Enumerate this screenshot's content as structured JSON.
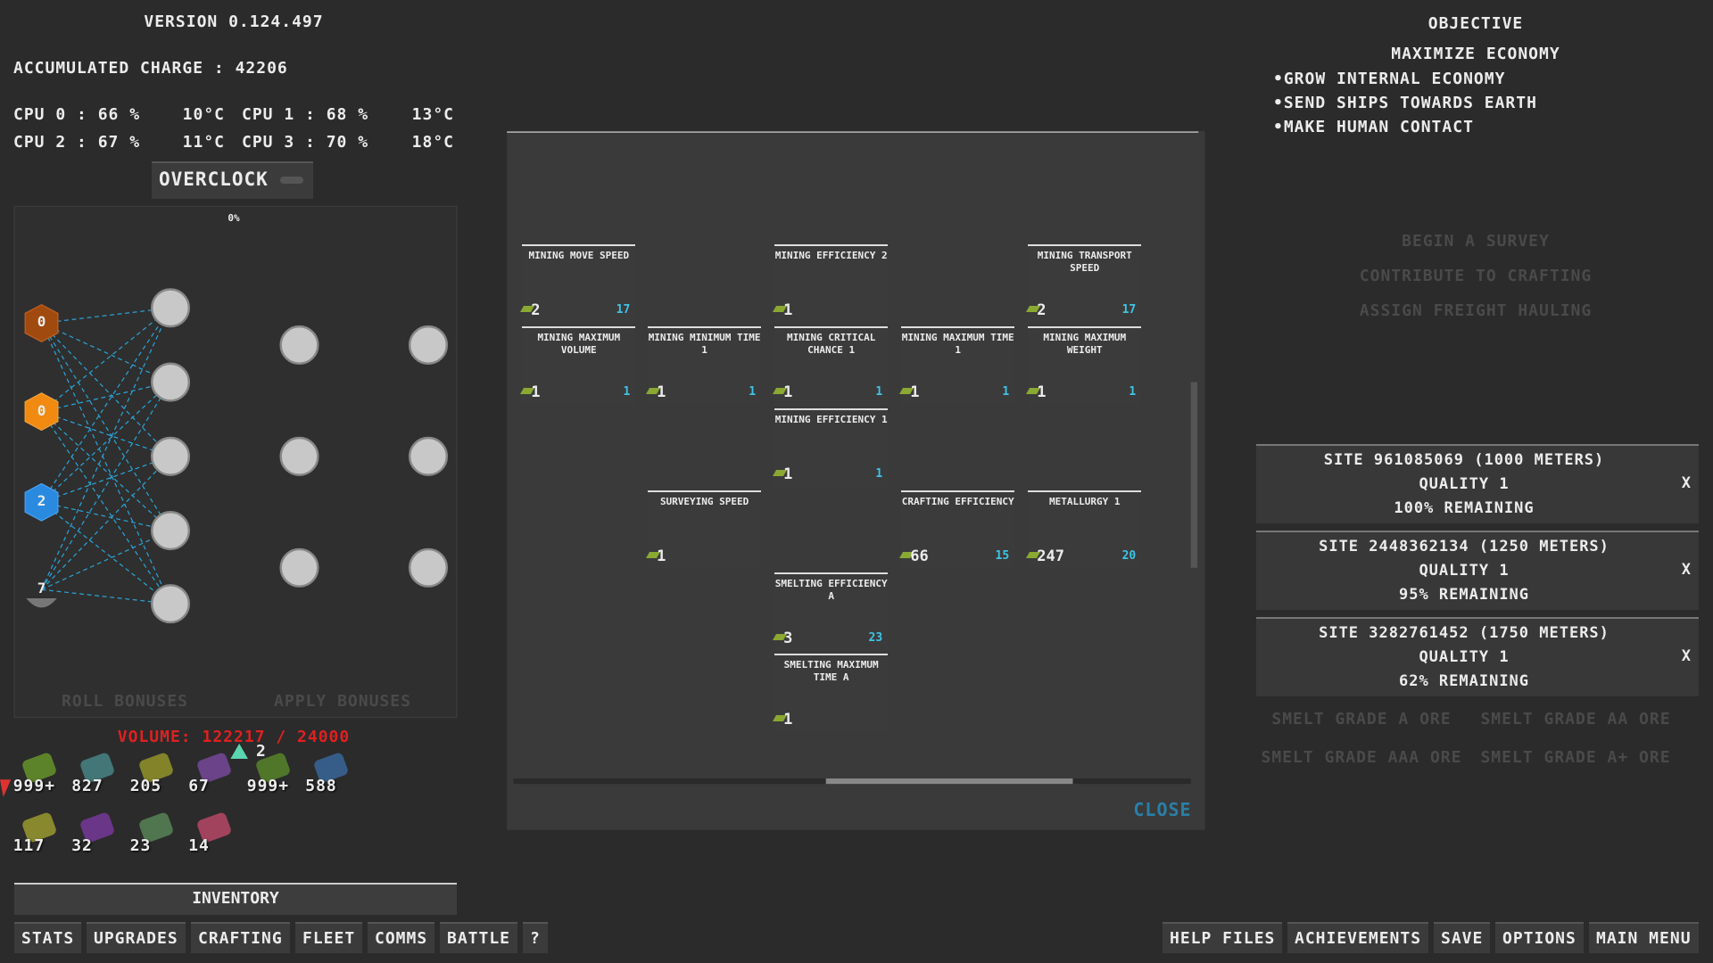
{
  "header": {
    "version": "VERSION 0.124.497",
    "charge": "ACCUMULATED CHARGE : 42206",
    "cpus": [
      {
        "label": "CPU 0 : 66 %",
        "temp": "10°C"
      },
      {
        "label": "CPU 1 : 68 %",
        "temp": "13°C"
      },
      {
        "label": "CPU 2 : 67 %",
        "temp": "11°C"
      },
      {
        "label": "CPU 3 : 70 %",
        "temp": "18°C"
      }
    ],
    "overclock": "OVERCLOCK"
  },
  "neural": {
    "percent": "0%",
    "inputs": [
      "0",
      "0",
      "2",
      "7"
    ],
    "roll": "ROLL BONUSES",
    "apply": "APPLY BONUSES"
  },
  "inventory": {
    "volume": "VOLUME: 122217 / 24000",
    "pending": "2",
    "items": [
      {
        "count": "999+",
        "color": "#6a9a2a"
      },
      {
        "count": "827",
        "color": "#4a8a8a"
      },
      {
        "count": "205",
        "color": "#9a9a2a"
      },
      {
        "count": "67",
        "color": "#7a4aa0"
      },
      {
        "count": "999+",
        "color": "#5a8a2a"
      },
      {
        "count": "588",
        "color": "#3a6aa0"
      },
      {
        "count": "117",
        "color": "#a0a030"
      },
      {
        "count": "32",
        "color": "#7a3aa0"
      },
      {
        "count": "23",
        "color": "#5a8a5a"
      },
      {
        "count": "14",
        "color": "#c04a6a"
      }
    ],
    "title": "INVENTORY"
  },
  "nav_left": [
    "STATS",
    "UPGRADES",
    "CRAFTING",
    "FLEET",
    "COMMS",
    "BATTLE",
    "?"
  ],
  "nav_right": [
    "HELP FILES",
    "ACHIEVEMENTS",
    "SAVE",
    "OPTIONS",
    "MAIN MENU"
  ],
  "objective": {
    "title": "OBJECTIVE",
    "goal": "MAXIMIZE ECONOMY",
    "items": [
      "•GROW INTERNAL ECONOMY",
      "•SEND SHIPS TOWARDS EARTH",
      "•MAKE HUMAN CONTACT"
    ]
  },
  "actions": [
    "BEGIN A SURVEY",
    "CONTRIBUTE TO CRAFTING",
    "ASSIGN FREIGHT HAULING"
  ],
  "sites": [
    {
      "name": "SITE 961085069 (1000 METERS)",
      "quality": "QUALITY 1",
      "remaining": "100% REMAINING"
    },
    {
      "name": "SITE 2448362134 (1250 METERS)",
      "quality": "QUALITY 1",
      "remaining": "95% REMAINING"
    },
    {
      "name": "SITE 3282761452 (1750 METERS)",
      "quality": "QUALITY 1",
      "remaining": "62% REMAINING"
    }
  ],
  "site_close": "X",
  "smelt": [
    "SMELT GRADE A ORE",
    "SMELT GRADE AA ORE",
    "SMELT GRADE AAA ORE",
    "SMELT GRADE A+ ORE"
  ],
  "upgrades": {
    "close": "CLOSE",
    "nodes": [
      {
        "name": "MINING MOVE SPEED",
        "level": "2",
        "max": "17"
      },
      {
        "name": "MINING EFFICIENCY 2",
        "level": "1"
      },
      {
        "name": "MINING TRANSPORT SPEED",
        "level": "2",
        "max": "17"
      },
      {
        "name": "MINING MAXIMUM VOLUME",
        "level": "1",
        "max": "1"
      },
      {
        "name": "MINING MINIMUM TIME 1",
        "level": "1",
        "max": "1"
      },
      {
        "name": "MINING CRITICAL CHANCE 1",
        "level": "1",
        "max": "1"
      },
      {
        "name": "MINING MAXIMUM TIME 1",
        "level": "1",
        "max": "1"
      },
      {
        "name": "MINING MAXIMUM WEIGHT",
        "level": "1",
        "max": "1"
      },
      {
        "name": "MINING EFFICIENCY 1",
        "level": "1",
        "max": "1"
      },
      {
        "name": "SURVEYING SPEED",
        "level": "1"
      },
      {
        "name": "CRAFTING EFFICIENCY",
        "level": "66",
        "max": "15"
      },
      {
        "name": "METALLURGY 1",
        "level": "247",
        "max": "20"
      },
      {
        "name": "SMELTING EFFICIENCY A",
        "level": "3",
        "max": "23"
      },
      {
        "name": "SMELTING MAXIMUM TIME A",
        "level": "1"
      }
    ]
  }
}
